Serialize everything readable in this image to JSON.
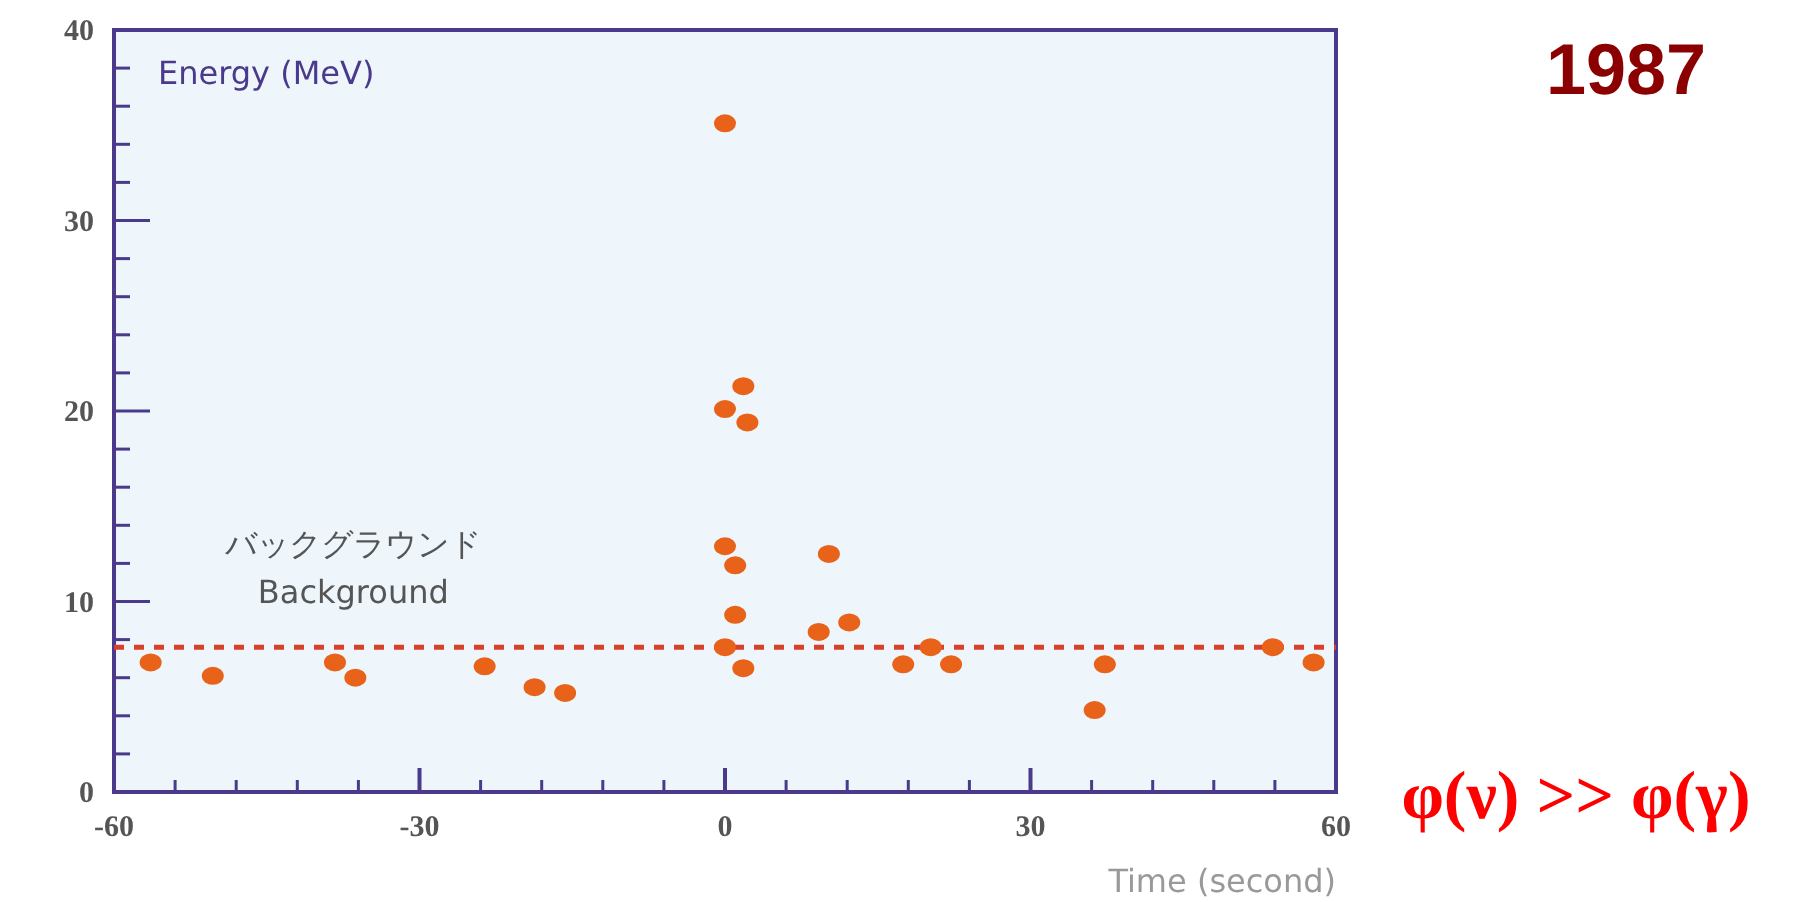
{
  "chart_data": {
    "type": "scatter",
    "title": "1987",
    "xlabel": "Time (second)",
    "ylabel": "Energy (MeV)",
    "x": [
      -56.4,
      -50.3,
      -38.3,
      -36.3,
      -23.6,
      -18.7,
      -15.7,
      0,
      0,
      1.8,
      2.2,
      0,
      1.0,
      1.0,
      0,
      1.8,
      9.2,
      10.2,
      12.2,
      17.5,
      20.2,
      22.2,
      36.3,
      37.3,
      53.8,
      57.8
    ],
    "series": [
      {
        "color": "#e8621a",
        "values": [
          6.8,
          6.1,
          6.8,
          6.0,
          6.6,
          5.5,
          5.2,
          35.1,
          20.1,
          21.3,
          19.4,
          12.9,
          11.9,
          9.3,
          7.6,
          6.5,
          8.4,
          12.5,
          8.9,
          6.7,
          7.6,
          6.7,
          4.3,
          6.7,
          7.6,
          6.8
        ]
      }
    ],
    "marker": "circle",
    "grid": false,
    "xlim": [
      -60,
      60
    ],
    "xticks": [
      -60,
      {
        "value": -54,
        "label": null
      },
      {
        "value": -48,
        "label": null
      },
      {
        "value": -42,
        "label": null
      },
      {
        "value": -36,
        "label": null
      },
      -30,
      {
        "value": -24,
        "label": null
      },
      {
        "value": -18,
        "label": null
      },
      {
        "value": -12,
        "label": null
      },
      {
        "value": -6,
        "label": null
      },
      0,
      {
        "value": 6,
        "label": null
      },
      {
        "value": 12,
        "label": null
      },
      {
        "value": 18,
        "label": null
      },
      {
        "value": 24,
        "label": null
      },
      30,
      {
        "value": 36,
        "label": null
      },
      {
        "value": 42,
        "label": null
      },
      {
        "value": 48,
        "label": null
      },
      {
        "value": 54,
        "label": null
      },
      60
    ],
    "ylim": [
      0,
      40
    ],
    "yticks": [
      0,
      {
        "value": 2,
        "label": null
      },
      {
        "value": 4,
        "label": null
      },
      {
        "value": 6,
        "label": null
      },
      {
        "value": 8,
        "label": null
      },
      10,
      {
        "value": 12,
        "label": null
      },
      {
        "value": 14,
        "label": null
      },
      {
        "value": 16,
        "label": null
      },
      {
        "value": 18,
        "label": null
      },
      20,
      {
        "value": 22,
        "label": null
      },
      {
        "value": 24,
        "label": null
      },
      {
        "value": 26,
        "label": null
      },
      {
        "value": 28,
        "label": null
      },
      30,
      {
        "value": 32,
        "label": null
      },
      {
        "value": 34,
        "label": null
      },
      {
        "value": 36,
        "label": null
      },
      {
        "value": 38,
        "label": null
      },
      40
    ],
    "ref_lines": [
      {
        "axis": "y",
        "value": 7.6,
        "label": "バックグラウンド\nBackground",
        "color": "#d9402a",
        "line_style": "dashed"
      }
    ],
    "annotations": [
      "φ(ν) >> φ(γ)"
    ]
  }
}
